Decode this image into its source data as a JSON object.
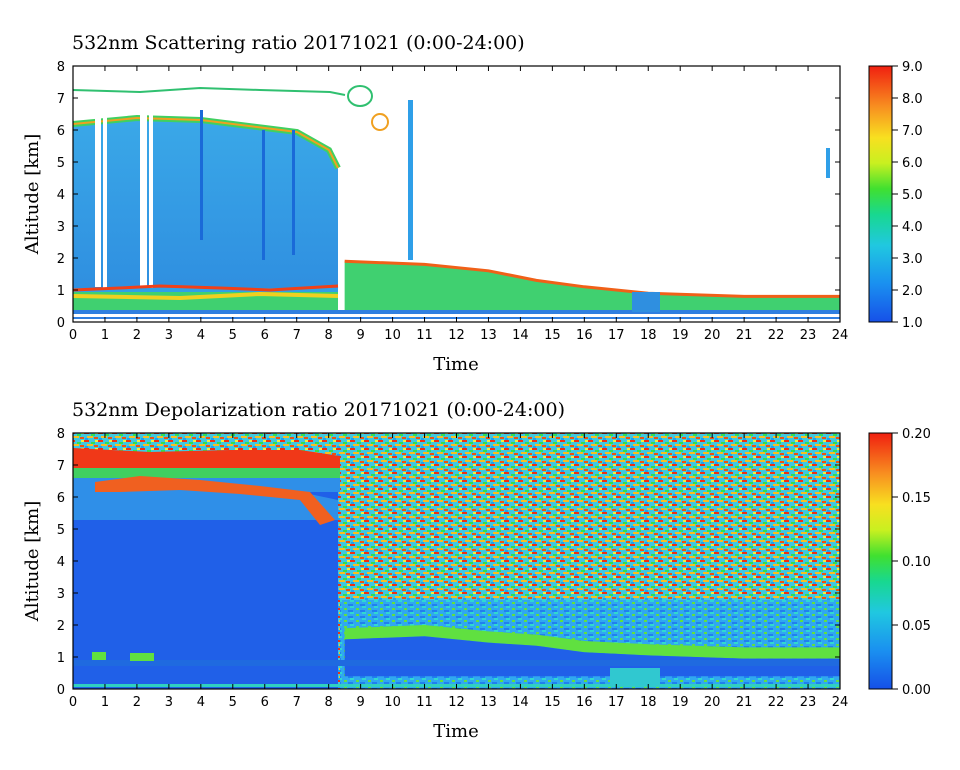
{
  "chart_data": [
    {
      "type": "heatmap",
      "title": "532nm Scattering ratio  20171021 (0:00-24:00)",
      "xlabel": "Time",
      "ylabel": "Altitude [km]",
      "xlim": [
        0,
        24
      ],
      "ylim": [
        0,
        8
      ],
      "x_ticks": [
        "0",
        "1",
        "2",
        "3",
        "4",
        "5",
        "6",
        "7",
        "8",
        "9",
        "10",
        "11",
        "12",
        "13",
        "14",
        "15",
        "16",
        "17",
        "18",
        "19",
        "20",
        "21",
        "22",
        "23",
        "24"
      ],
      "y_ticks": [
        "0",
        "1",
        "2",
        "3",
        "4",
        "5",
        "6",
        "7",
        "8"
      ],
      "colorbar": {
        "range": [
          1.0,
          9.0
        ],
        "ticks": [
          "1.0",
          "2.0",
          "3.0",
          "4.0",
          "5.0",
          "6.0",
          "7.0",
          "8.0",
          "9.0"
        ]
      },
      "features": {
        "boundary_layer_top_km": [
          {
            "t": 0,
            "h": 1.0
          },
          {
            "t": 4,
            "h": 1.0
          },
          {
            "t": 8,
            "h": 1.0
          },
          {
            "t": 8.5,
            "h": 1.9
          },
          {
            "t": 11,
            "h": 1.8
          },
          {
            "t": 13,
            "h": 1.6
          },
          {
            "t": 14.5,
            "h": 1.3
          },
          {
            "t": 16,
            "h": 1.1
          },
          {
            "t": 18,
            "h": 0.9
          },
          {
            "t": 21,
            "h": 0.8
          },
          {
            "t": 24,
            "h": 0.8
          }
        ],
        "cirrus_base_km": [
          {
            "t": 0,
            "h": 6.2
          },
          {
            "t": 2,
            "h": 6.4
          },
          {
            "t": 4,
            "h": 6.3
          },
          {
            "t": 6,
            "h": 6.0
          },
          {
            "t": 7,
            "h": 5.8
          },
          {
            "t": 8,
            "h": 5.2
          },
          {
            "t": 8.3,
            "h": 4.8
          }
        ],
        "cirrus_top_km": 7.2
      }
    },
    {
      "type": "heatmap",
      "title": "532nm Depolarization ratio  20171021 (0:00-24:00)",
      "xlabel": "Time",
      "ylabel": "Altitude [km]",
      "xlim": [
        0,
        24
      ],
      "ylim": [
        0,
        8
      ],
      "x_ticks": [
        "0",
        "1",
        "2",
        "3",
        "4",
        "5",
        "6",
        "7",
        "8",
        "9",
        "10",
        "11",
        "12",
        "13",
        "14",
        "15",
        "16",
        "17",
        "18",
        "19",
        "20",
        "21",
        "22",
        "23",
        "24"
      ],
      "y_ticks": [
        "0",
        "1",
        "2",
        "3",
        "4",
        "5",
        "6",
        "7",
        "8"
      ],
      "colorbar": {
        "range": [
          0.0,
          0.2
        ],
        "ticks": [
          "0.00",
          "0.05",
          "0.10",
          "0.15",
          "0.20"
        ]
      },
      "features": {
        "cloud_layer_km": [
          {
            "t": 0,
            "h": 7.1
          },
          {
            "t": 3,
            "h": 7.2
          },
          {
            "t": 6,
            "h": 7.2
          },
          {
            "t": 8.3,
            "h": 7.1
          }
        ],
        "boundary_layer_top_km": [
          {
            "t": 8.5,
            "h": 1.9
          },
          {
            "t": 11,
            "h": 2.0
          },
          {
            "t": 13,
            "h": 1.8
          },
          {
            "t": 14.5,
            "h": 1.7
          },
          {
            "t": 16,
            "h": 1.5
          },
          {
            "t": 18,
            "h": 1.4
          },
          {
            "t": 21,
            "h": 1.3
          },
          {
            "t": 24,
            "h": 1.3
          }
        ]
      }
    }
  ]
}
